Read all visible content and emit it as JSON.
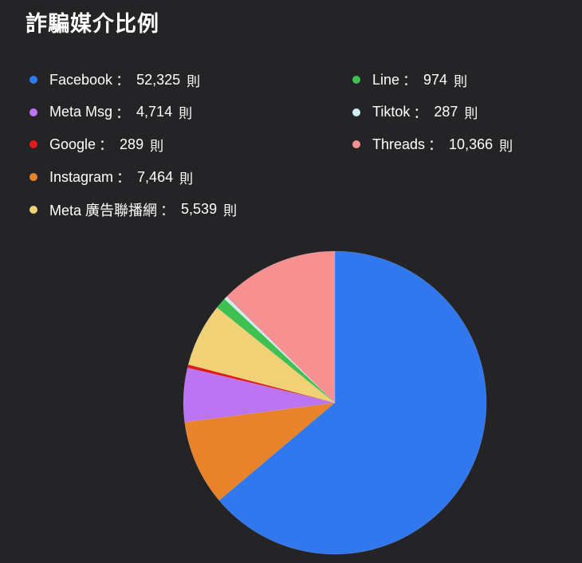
{
  "title": "詐騙媒介比例",
  "chart_data": {
    "type": "pie",
    "title": "詐騙媒介比例",
    "unit": "則",
    "separator": "：",
    "legend_placement": "top",
    "slices": [
      {
        "name": "Facebook",
        "value": 52325,
        "display": "52,325",
        "color": "#3178ef"
      },
      {
        "name": "Instagram",
        "value": 7464,
        "display": "7,464",
        "color": "#e8832c"
      },
      {
        "name": "Meta Msg",
        "value": 4714,
        "display": "4,714",
        "color": "#bd74f3"
      },
      {
        "name": "Google",
        "value": 289,
        "display": "289",
        "color": "#e01b1b"
      },
      {
        "name": "Meta 廣告聯播網",
        "value": 5539,
        "display": "5,539",
        "color": "#f1d176"
      },
      {
        "name": "Line",
        "value": 974,
        "display": "974",
        "color": "#3ec150"
      },
      {
        "name": "Tiktok",
        "value": 287,
        "display": "287",
        "color": "#cdeff4"
      },
      {
        "name": "Threads",
        "value": 10366,
        "display": "10,366",
        "color": "#f79090"
      }
    ]
  }
}
